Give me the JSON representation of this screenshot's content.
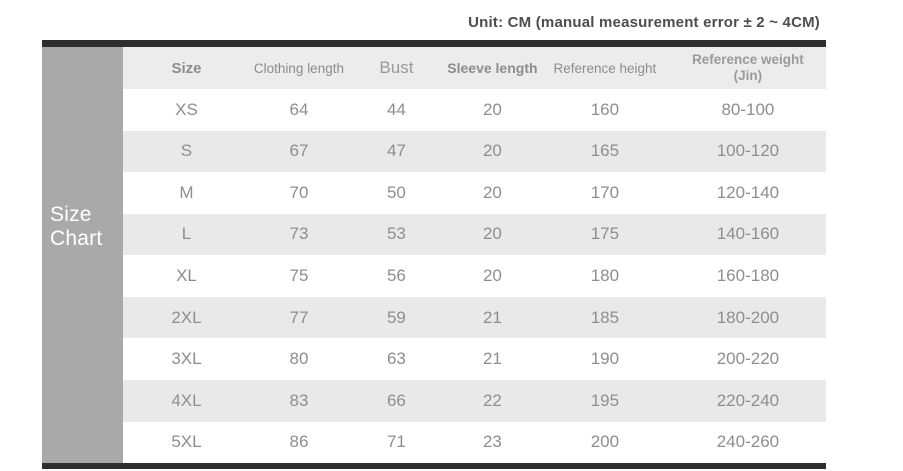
{
  "note": "Unit: CM (manual measurement error ± 2 ~ 4CM)",
  "side_label": {
    "line1": "Size",
    "line2": "Chart"
  },
  "colors": {
    "border_bar": "#2e2e2e",
    "side_label_bg": "#a9a9a9",
    "side_label_text": "#ffffff",
    "header_bg": "#ececec",
    "stripe_bg": "#e9e9e9",
    "row_bg": "#ffffff",
    "value_text": "#8e8e8e",
    "header_text": "#8c8c8c",
    "note_text": "#4d4d4d"
  },
  "chart_data": {
    "type": "table",
    "title": "Size Chart",
    "unit_note": "Unit: CM (manual measurement error ± 2 ~ 4CM)",
    "columns": [
      "Size",
      "Clothing length",
      "Bust",
      "Sleeve length",
      "Reference height",
      "Reference weight (Jin)"
    ],
    "rows": [
      [
        "XS",
        64,
        44,
        20,
        160,
        "80-100"
      ],
      [
        "S",
        67,
        47,
        20,
        165,
        "100-120"
      ],
      [
        "M",
        70,
        50,
        20,
        170,
        "120-140"
      ],
      [
        "L",
        73,
        53,
        20,
        175,
        "140-160"
      ],
      [
        "XL",
        75,
        56,
        20,
        180,
        "160-180"
      ],
      [
        "2XL",
        77,
        59,
        21,
        185,
        "180-200"
      ],
      [
        "3XL",
        80,
        63,
        21,
        190,
        "200-220"
      ],
      [
        "4XL",
        83,
        66,
        22,
        195,
        "220-240"
      ],
      [
        "5XL",
        86,
        71,
        23,
        200,
        "240-260"
      ]
    ]
  }
}
